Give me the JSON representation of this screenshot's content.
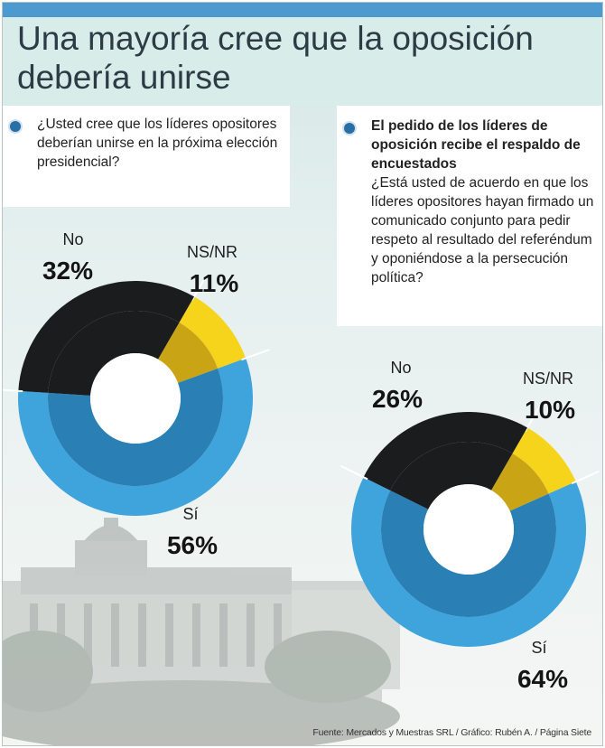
{
  "title": "Una mayoría cree que la oposición debería unirse",
  "left_question": {
    "text": "¿Usted cree que los líderes opositores deberían unirse en la próxima elección presidencial?"
  },
  "right_question": {
    "headline": "El pedido de los líderes de oposición recibe el respaldo de encuestados",
    "text": "¿Está usted de acuerdo en que los líderes opositores hayan firmado un comunicado conjunto para pedir respeto al resultado del referéndum y oponiéndose a la persecución política?"
  },
  "source": "Fuente: Mercados y Muestras SRL / Gráfico: Rubén A. / Página Siete",
  "colors": {
    "si": "#3fa4dc",
    "si_inner": "#2a80b5",
    "no": "#1b1c1e",
    "ns": "#f6d41c",
    "ns_inner": "#c9a516"
  },
  "chart_data": [
    {
      "type": "pie",
      "categories": [
        "Sí",
        "No",
        "NS/NR"
      ],
      "values": [
        56,
        32,
        11
      ],
      "labels": [
        "56%",
        "32%",
        "11%"
      ]
    },
    {
      "type": "pie",
      "categories": [
        "Sí",
        "No",
        "NS/NR"
      ],
      "values": [
        64,
        26,
        10
      ],
      "labels": [
        "64%",
        "26%",
        "10%"
      ]
    }
  ]
}
